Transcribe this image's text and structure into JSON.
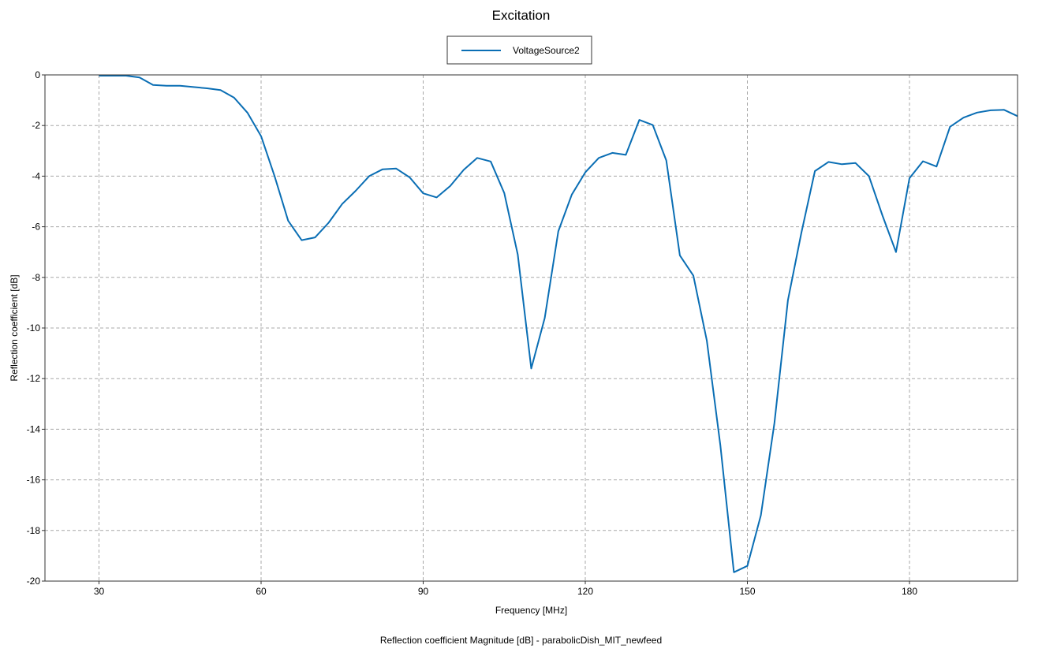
{
  "chart_data": {
    "type": "line",
    "title": "Excitation",
    "xlabel": "Frequency [MHz]",
    "ylabel": "Reflection coefficient [dB]",
    "caption": "Reflection coefficient Magnitude [dB] - parabolicDish_MIT_newfeed",
    "xlim": [
      20,
      200
    ],
    "ylim": [
      -20,
      0
    ],
    "xticks": [
      30,
      60,
      90,
      120,
      150,
      180
    ],
    "yticks": [
      0,
      -2,
      -4,
      -6,
      -8,
      -10,
      -12,
      -14,
      -16,
      -18,
      -20
    ],
    "grid": true,
    "legend_position": "top-center",
    "series": [
      {
        "name": "VoltageSource2",
        "color": "#0a6eb4",
        "x": [
          30,
          32.5,
          35,
          37.5,
          40,
          42.5,
          45,
          47.5,
          50,
          52.5,
          55,
          57.5,
          60,
          62.5,
          65,
          67.5,
          70,
          72.5,
          75,
          77.5,
          80,
          82.5,
          85,
          87.5,
          90,
          92.5,
          95,
          97.5,
          100,
          102.5,
          105,
          107.5,
          110,
          112.5,
          115,
          117.5,
          120,
          122.5,
          125,
          127.5,
          130,
          132.5,
          135,
          137.5,
          140,
          142.5,
          145,
          147.5,
          150,
          152.5,
          155,
          157.5,
          160,
          162.5,
          165,
          167.5,
          170,
          172.5,
          175,
          177.5,
          180,
          182.5,
          185,
          187.5,
          190,
          192.5,
          195,
          197.5,
          200
        ],
        "y": [
          -0.03,
          -0.03,
          -0.03,
          -0.1,
          -0.4,
          -0.43,
          -0.43,
          -0.48,
          -0.53,
          -0.6,
          -0.9,
          -1.5,
          -2.42,
          -4.0,
          -5.76,
          -6.53,
          -6.42,
          -5.84,
          -5.1,
          -4.58,
          -4.0,
          -3.73,
          -3.7,
          -4.05,
          -4.68,
          -4.84,
          -4.39,
          -3.75,
          -3.28,
          -3.42,
          -4.67,
          -7.1,
          -11.6,
          -9.6,
          -6.18,
          -4.73,
          -3.85,
          -3.28,
          -3.08,
          -3.16,
          -1.78,
          -1.98,
          -3.38,
          -7.13,
          -7.93,
          -10.5,
          -14.65,
          -19.65,
          -19.4,
          -17.4,
          -13.75,
          -8.9,
          -6.23,
          -3.8,
          -3.44,
          -3.53,
          -3.48,
          -4.0,
          -5.56,
          -7.0,
          -4.08,
          -3.41,
          -3.62,
          -2.05,
          -1.69,
          -1.49,
          -1.4,
          -1.38,
          -1.63
        ]
      }
    ]
  }
}
